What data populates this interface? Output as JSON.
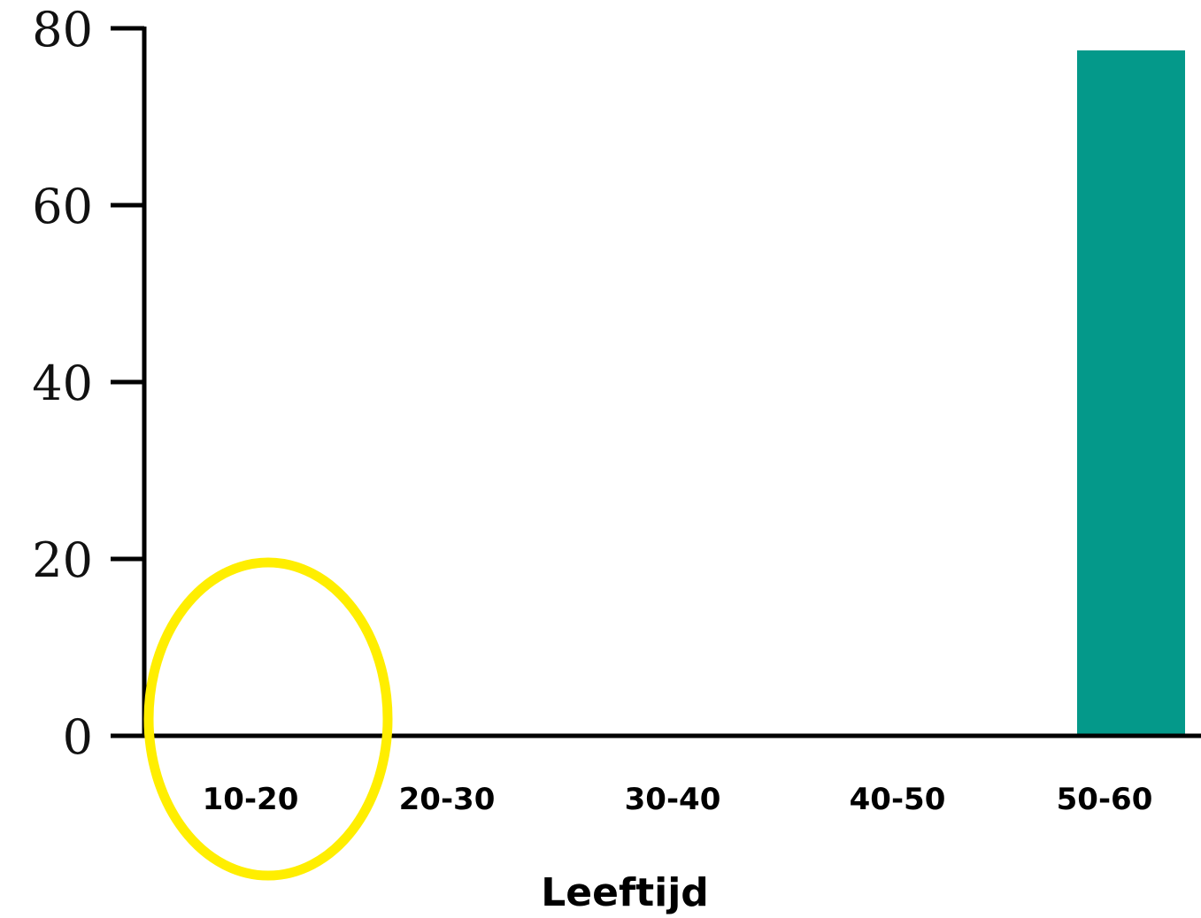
{
  "chart_data": {
    "type": "bar",
    "title": "",
    "xlabel": "Leeftijd",
    "ylabel": "",
    "categories": [
      "10-20",
      "20-30",
      "30-40",
      "40-50",
      "50-60"
    ],
    "values": [
      0,
      0,
      0,
      0,
      77.5
    ],
    "ylim": [
      0,
      80
    ],
    "yticks": [
      {
        "value": 0,
        "label": "0"
      },
      {
        "value": 20,
        "label": "20"
      },
      {
        "value": 40,
        "label": "40"
      },
      {
        "value": 60,
        "label": "60"
      },
      {
        "value": 80,
        "label": "80"
      }
    ],
    "grid": false,
    "bar_color": "#04998a",
    "highlight": {
      "category": "10-20",
      "shape": "ellipse",
      "color": "#ffee00"
    }
  }
}
